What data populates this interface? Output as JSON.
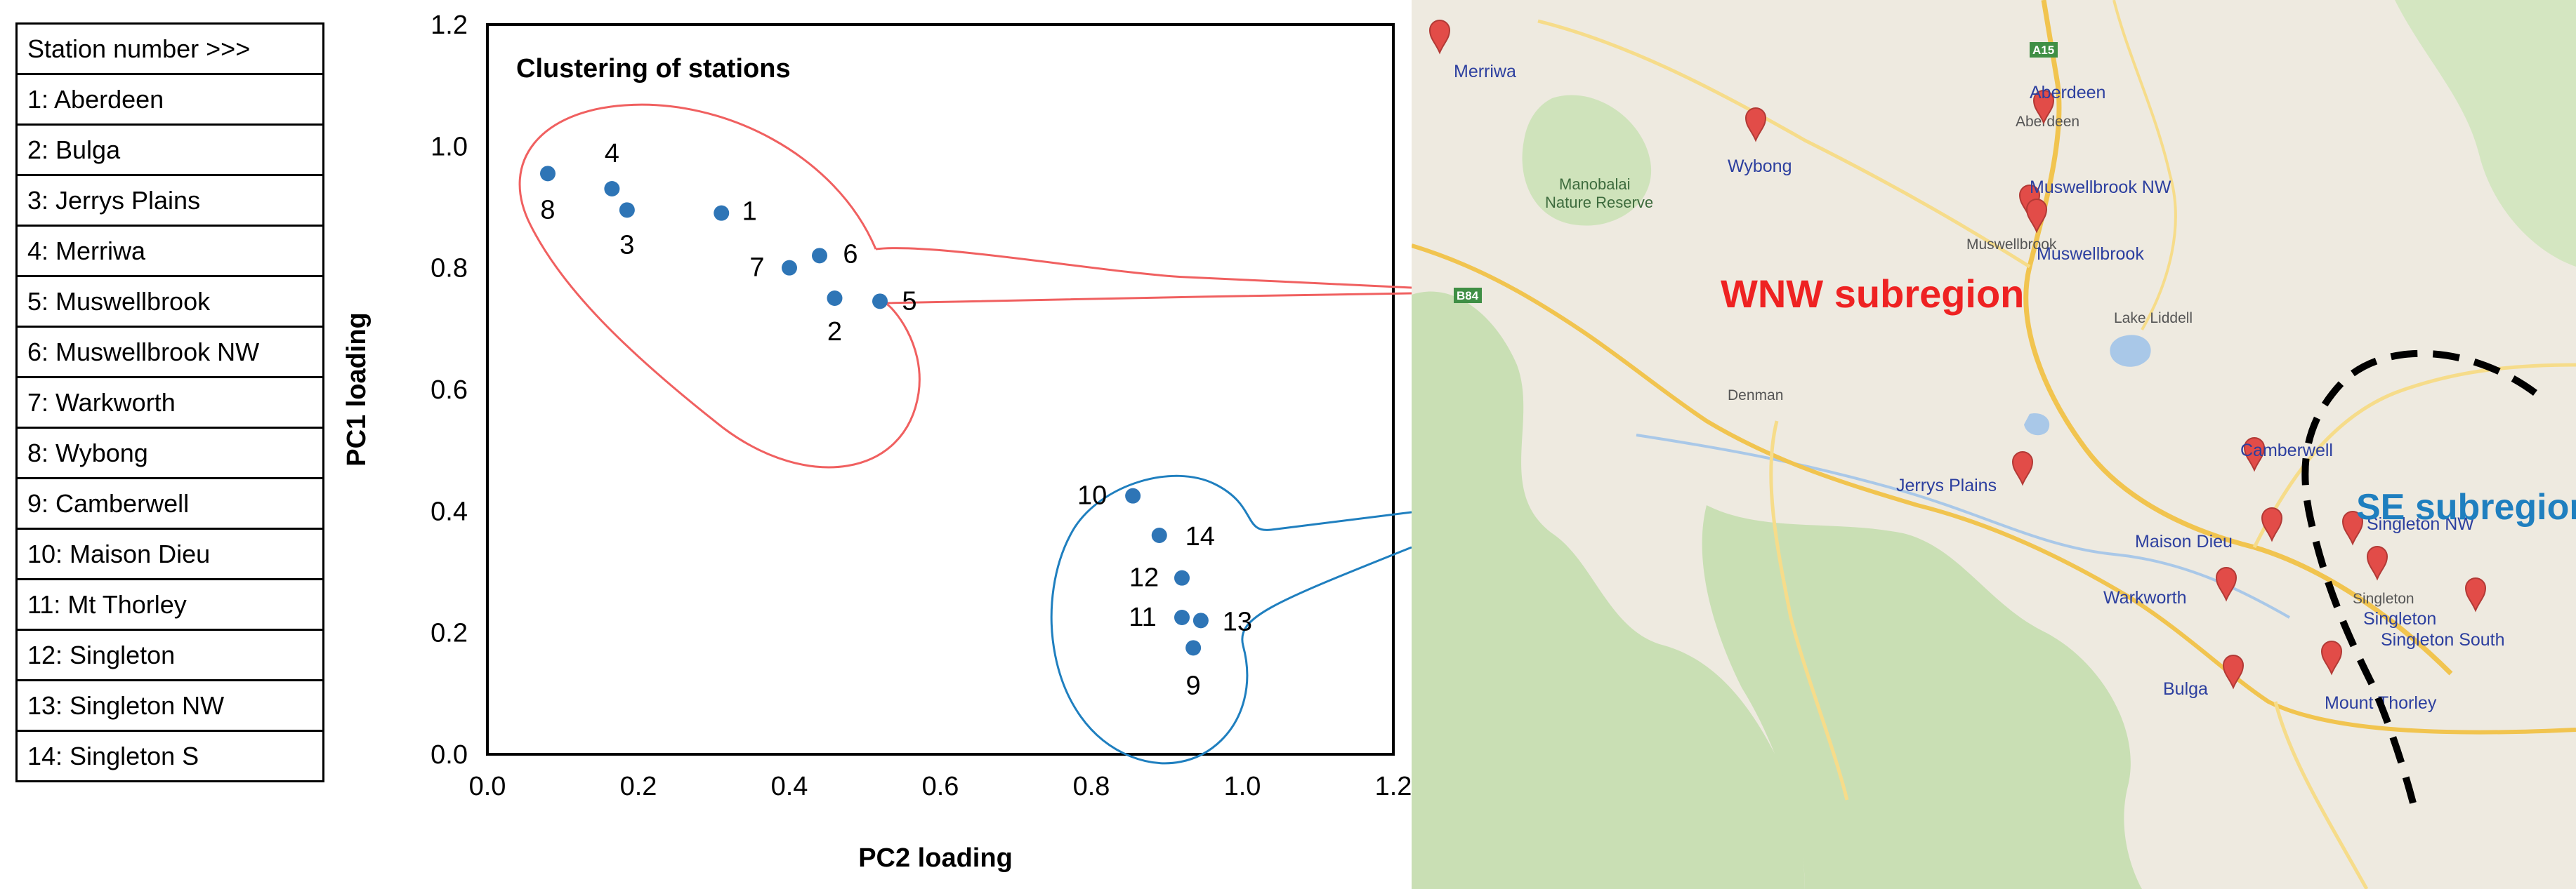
{
  "station_table": {
    "header": "Station number >>>",
    "rows": [
      "1: Aberdeen",
      "2: Bulga",
      "3: Jerrys Plains",
      "4: Merriwa",
      "5: Muswellbrook",
      "6: Muswellbrook NW",
      "7: Warkworth",
      "8: Wybong",
      "9: Camberwell",
      "10: Maison Dieu",
      "11: Mt Thorley",
      "12: Singleton",
      "13: Singleton NW",
      "14: Singleton S"
    ]
  },
  "chart_data": {
    "type": "scatter",
    "title": "Clustering of stations",
    "xlabel": "PC2 loading",
    "ylabel": "PC1 loading",
    "xlim": [
      0.0,
      1.2
    ],
    "ylim": [
      0.0,
      1.2
    ],
    "xticks": [
      "0.0",
      "0.2",
      "0.4",
      "0.6",
      "0.8",
      "1.0",
      "1.2"
    ],
    "yticks": [
      "0.0",
      "0.2",
      "0.4",
      "0.6",
      "0.8",
      "1.0",
      "1.2"
    ],
    "grid": false,
    "marker_color": "#2e75b6",
    "points": [
      {
        "label": "1",
        "x": 0.31,
        "y": 0.89
      },
      {
        "label": "2",
        "x": 0.46,
        "y": 0.75
      },
      {
        "label": "3",
        "x": 0.185,
        "y": 0.895
      },
      {
        "label": "4",
        "x": 0.165,
        "y": 0.93
      },
      {
        "label": "5",
        "x": 0.52,
        "y": 0.745
      },
      {
        "label": "6",
        "x": 0.44,
        "y": 0.82
      },
      {
        "label": "7",
        "x": 0.4,
        "y": 0.8
      },
      {
        "label": "8",
        "x": 0.08,
        "y": 0.955
      },
      {
        "label": "9",
        "x": 0.935,
        "y": 0.175
      },
      {
        "label": "10",
        "x": 0.855,
        "y": 0.425
      },
      {
        "label": "11",
        "x": 0.92,
        "y": 0.225
      },
      {
        "label": "12",
        "x": 0.92,
        "y": 0.29
      },
      {
        "label": "13",
        "x": 0.945,
        "y": 0.22
      },
      {
        "label": "14",
        "x": 0.89,
        "y": 0.36
      }
    ],
    "clusters": [
      {
        "name": "WNW subregion",
        "color": "#ee2222"
      },
      {
        "name": "SE subregion",
        "color": "#1f7fbf"
      }
    ]
  },
  "map": {
    "places": [
      "Merriwa",
      "Aberdeen",
      "Wybong",
      "Muswellbrook NW",
      "Muswellbrook",
      "Jerrys Plains",
      "Camberwell",
      "Maison Dieu",
      "Singleton NW",
      "Singleton",
      "Warkworth",
      "Singleton South",
      "Bulga",
      "Mount Thorley"
    ],
    "minor_labels": [
      "Aberdeen",
      "Muswellbrook",
      "Denman",
      "Singleton",
      "Lake Liddell"
    ],
    "reserve_label": [
      "Manobalai",
      "Nature Reserve"
    ],
    "road_shields": [
      "A15",
      "B84"
    ],
    "marker_color": "#e24c48"
  }
}
